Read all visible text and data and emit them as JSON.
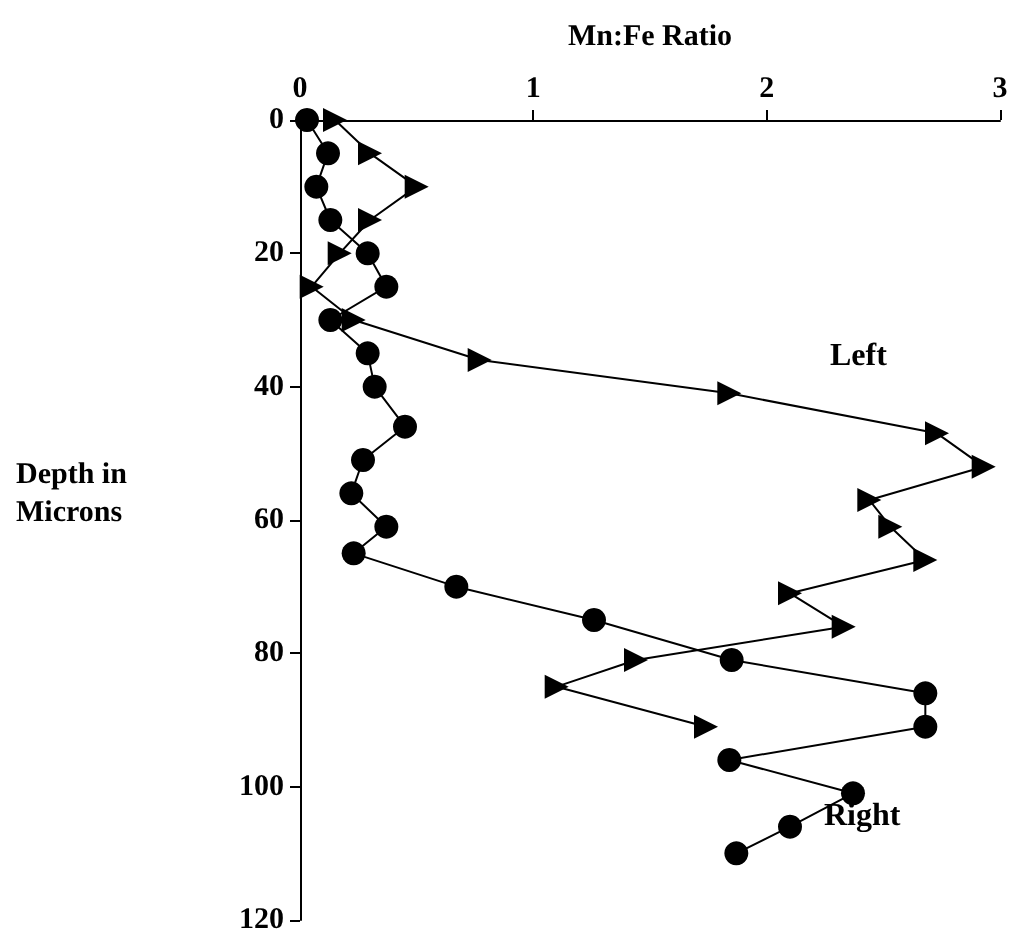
{
  "chart_data": {
    "type": "line",
    "xlabel": "Mn:Fe Ratio",
    "ylabel": "Depth in\nMicrons",
    "xlim": [
      0,
      3
    ],
    "xticks": [
      0,
      1,
      2,
      3
    ],
    "ylim": [
      120,
      0
    ],
    "yticks": [
      0,
      20,
      40,
      60,
      80,
      100,
      120
    ],
    "grid": false,
    "series": [
      {
        "color": "#000000",
        "marker": "triangle",
        "x": [
          0.15,
          0.3,
          0.5,
          0.3,
          0.17,
          0.05,
          0.23,
          0.77,
          1.84,
          2.73,
          2.93,
          2.44,
          2.53,
          2.68,
          2.1,
          2.33,
          1.44,
          1.1,
          1.74
        ],
        "values": [
          0,
          5,
          10,
          15,
          20,
          25,
          30,
          36,
          41,
          47,
          52,
          57,
          61,
          66,
          71,
          76,
          81,
          85,
          91
        ]
      },
      {
        "color": "#000000",
        "marker": "circle",
        "x": [
          0.03,
          0.12,
          0.07,
          0.13,
          0.29,
          0.37,
          0.13,
          0.29,
          0.32,
          0.45,
          0.27,
          0.22,
          0.37,
          0.23,
          0.67,
          1.26,
          1.85,
          2.68,
          2.68,
          1.84,
          2.37,
          2.1,
          1.87
        ],
        "values": [
          0,
          5,
          10,
          15,
          20,
          25,
          30,
          35,
          40,
          46,
          51,
          56,
          61,
          65,
          70,
          75,
          81,
          86,
          91,
          96,
          101,
          106,
          110
        ]
      }
    ],
    "annotations": [
      "Left",
      "Right"
    ]
  }
}
